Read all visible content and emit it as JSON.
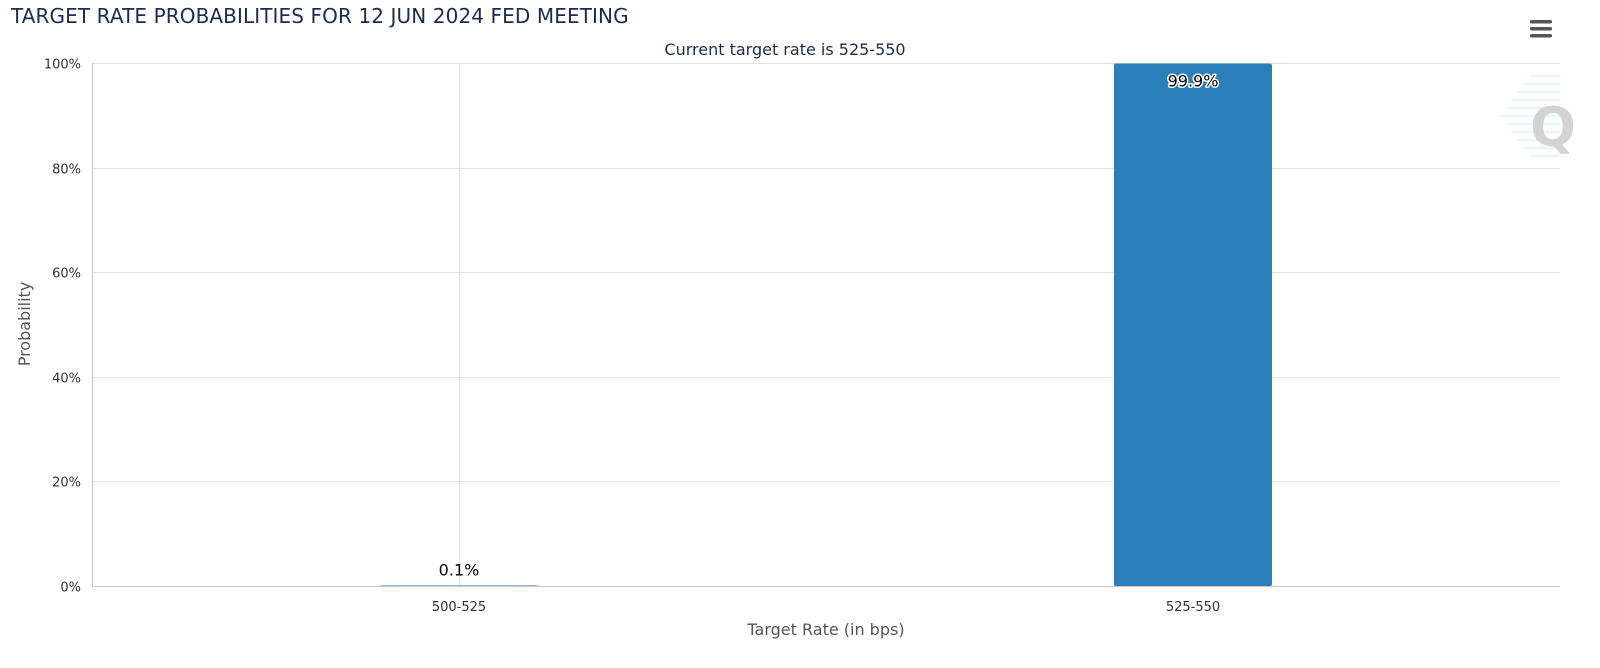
{
  "title": "TARGET RATE PROBABILITIES FOR 12 JUN 2024 FED MEETING",
  "menu_icon": "hamburger-menu-icon",
  "watermark_icon": "q-logo-icon",
  "colors": {
    "bar": "#2a7fba",
    "title": "#1a2c55",
    "grid": "#e0e0e0",
    "axis": "#c8c8c8"
  },
  "chart_data": {
    "type": "bar",
    "title": "TARGET RATE PROBABILITIES FOR 12 JUN 2024 FED MEETING",
    "subtitle": "Current target rate is 525-550",
    "xlabel": "Target Rate (in bps)",
    "ylabel": "Probability",
    "categories": [
      "500-525",
      "525-550"
    ],
    "values": [
      0.1,
      99.9
    ],
    "data_labels": [
      "0.1%",
      "99.9%"
    ],
    "ylim": [
      0,
      100
    ],
    "yticks": [
      0,
      20,
      40,
      60,
      80,
      100
    ],
    "ytick_labels": [
      "0%",
      "20%",
      "40%",
      "60%",
      "80%",
      "100%"
    ],
    "grid": true,
    "legend": "none"
  }
}
